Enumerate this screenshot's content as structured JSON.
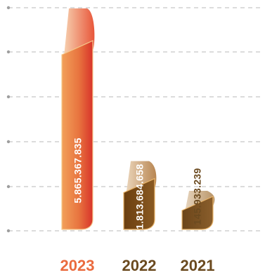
{
  "chart_data": {
    "type": "bar",
    "title": "",
    "xlabel": "",
    "ylabel": "",
    "grid": true,
    "categories": [
      "2023",
      "2022",
      "2021"
    ],
    "values": [
      5865367835,
      1813684658,
      145933239
    ],
    "value_labels": [
      "5.865.367.835",
      "1.813.684.658",
      "145.933.239"
    ],
    "colors": {
      "2023": "#e8623a",
      "2022": "#7a4a14",
      "2021": "#6e4a1a"
    },
    "label_colors": {
      "2023": "#ffffff",
      "2022": "#ffffff",
      "2021": "#6b4a1f"
    },
    "category_label_colors": {
      "2023": "#ea6b3e",
      "2022": "#6b4a1f",
      "2021": "#6b4a1f"
    }
  }
}
